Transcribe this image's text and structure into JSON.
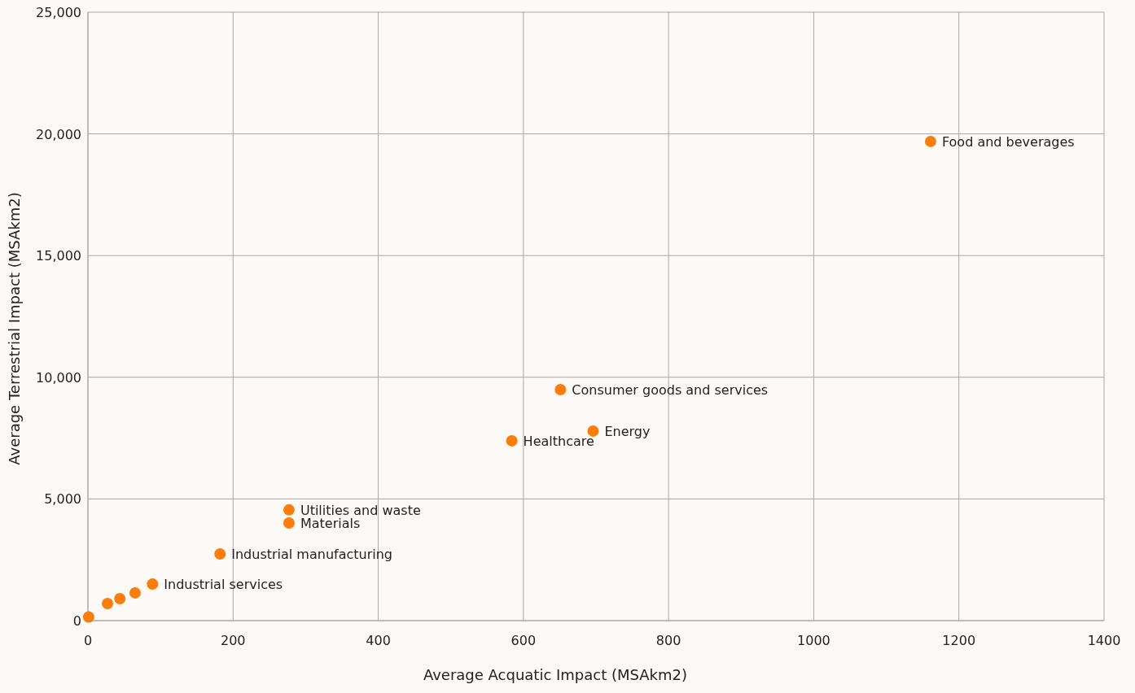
{
  "chart_data": {
    "type": "scatter",
    "xlabel": "Average Acquatic Impact (MSAkm2)",
    "ylabel": "Average Terrestrial Impact (MSAkm2)",
    "x": [
      1,
      27,
      44,
      65,
      89,
      182,
      277,
      277,
      584,
      651,
      696,
      1161
    ],
    "series": [
      {
        "color": "#fb7d0c",
        "values": [
          150,
          700,
          900,
          1140,
          1500,
          2740,
          4010,
          4550,
          7390,
          9490,
          7790,
          19690
        ]
      }
    ],
    "xlim": [
      0,
      1400
    ],
    "xticks": [
      0,
      200,
      400,
      600,
      800,
      1000,
      1200,
      1400
    ],
    "ylim": [
      0,
      25000
    ],
    "yticks": [
      0,
      {
        "value": 5000,
        "label": "5,000"
      },
      {
        "value": 10000,
        "label": "10,000"
      },
      {
        "value": 15000,
        "label": "15,000"
      },
      {
        "value": 20000,
        "label": "20,000"
      },
      {
        "value": 25000,
        "label": "25,000"
      }
    ],
    "grid": true,
    "marker": "circle",
    "annotations": [
      {
        "text": "Industrial services",
        "x": 89,
        "y": 1500
      },
      {
        "text": "Industrial manufacturing",
        "x": 182,
        "y": 2740
      },
      {
        "text": "Materials",
        "x": 277,
        "y": 4010
      },
      {
        "text": "Utilities and waste",
        "x": 277,
        "y": 4550
      },
      {
        "text": "Healthcare",
        "x": 584,
        "y": 7390
      },
      {
        "text": "Consumer goods and services",
        "x": 651,
        "y": 9490
      },
      {
        "text": "Energy",
        "x": 696,
        "y": 7790
      },
      {
        "text": "Food and beverages",
        "x": 1161,
        "y": 19690
      }
    ]
  }
}
